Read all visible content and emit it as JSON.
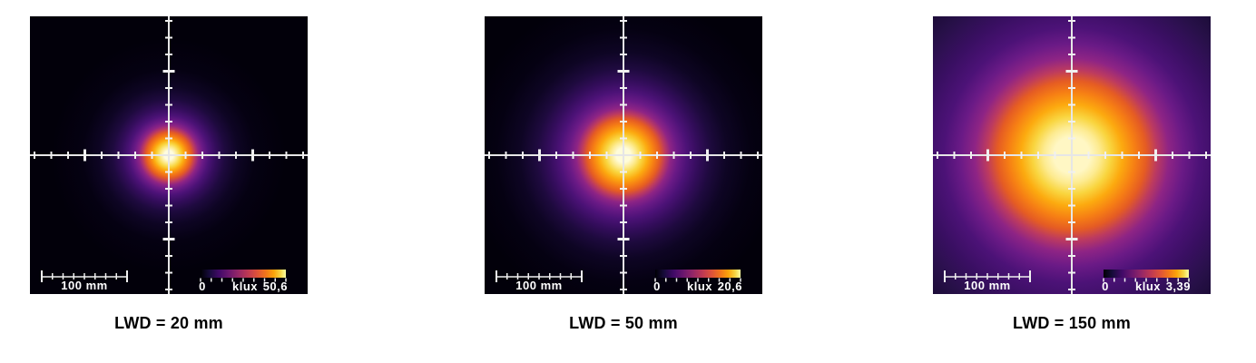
{
  "accent_colors": {
    "panel_background": "#02000a",
    "panel3_corner": "#1c0c38",
    "axis_color": "#f0f0f0",
    "label_color": "#ffffff",
    "caption_color": "#000000",
    "colormap_name": "inferno-like (black-purple-magenta-orange-yellow-white)"
  },
  "chart_data": [
    {
      "type": "heatmap",
      "title": "LWD = 20 mm",
      "colormap": "inferno",
      "peak_position": "center of crosshair",
      "approx_bright_spot_diameter_mm": 55,
      "scale_bar": {
        "label": "100 mm",
        "length_mm": 100
      },
      "colorbar": {
        "min_label": "0",
        "unit": "klux",
        "max_label": "50,6",
        "max_value_klux": 50.6
      }
    },
    {
      "type": "heatmap",
      "title": "LWD = 50 mm",
      "colormap": "inferno",
      "peak_position": "center of crosshair",
      "approx_bright_spot_diameter_mm": 85,
      "scale_bar": {
        "label": "100 mm",
        "length_mm": 100
      },
      "colorbar": {
        "min_label": "0",
        "unit": "klux",
        "max_label": "20,6",
        "max_value_klux": 20.6
      }
    },
    {
      "type": "heatmap",
      "title": "LWD = 150 mm",
      "colormap": "inferno",
      "peak_position": "center of crosshair",
      "approx_bright_spot_diameter_mm": 170,
      "scale_bar": {
        "label": "100 mm",
        "length_mm": 100
      },
      "colorbar": {
        "min_label": "0",
        "unit": "klux",
        "max_label": "3,39",
        "max_value_klux": 3.39
      }
    }
  ]
}
